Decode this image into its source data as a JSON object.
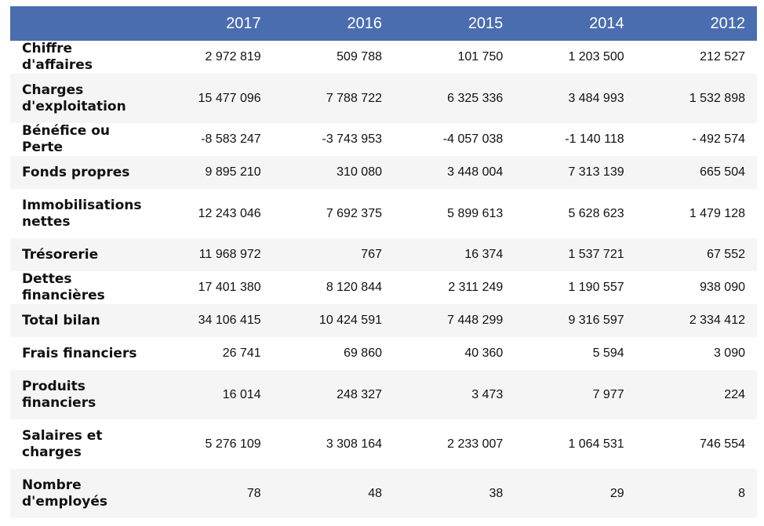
{
  "columns": [
    "",
    "2017",
    "2016",
    "2015",
    "2014",
    "2012"
  ],
  "rows": [
    {
      "label": "Chiffre d'affaires",
      "values": [
        "2 972 819",
        "509 788",
        "101 750",
        "1 203 500",
        "212 527"
      ]
    },
    {
      "label": "Charges d'exploitation",
      "values": [
        "15 477 096",
        "7 788 722",
        "6 325 336",
        "3 484 993",
        "1 532 898"
      ]
    },
    {
      "label": "Bénéfice ou Perte",
      "values": [
        "-8 583 247",
        "-3 743 953",
        "-4 057 038",
        "-1 140 118",
        "- 492 574"
      ]
    },
    {
      "label": "Fonds propres",
      "values": [
        "9 895 210",
        "310 080",
        "3 448 004",
        "7 313 139",
        "665 504"
      ]
    },
    {
      "label": "Immobilisations nettes",
      "values": [
        "12 243 046",
        "7 692 375",
        "5 899 613",
        "5 628 623",
        "1 479 128"
      ]
    },
    {
      "label": "Trésorerie",
      "values": [
        "11 968 972",
        "767",
        "16 374",
        "1 537 721",
        "67 552"
      ]
    },
    {
      "label": "Dettes financières",
      "values": [
        "17 401 380",
        "8 120 844",
        "2 311 249",
        "1 190 557",
        "938 090"
      ]
    },
    {
      "label": "Total bilan",
      "values": [
        "34 106 415",
        "10 424 591",
        "7 448 299",
        "9 316 597",
        "2 334 412"
      ]
    },
    {
      "label": "Frais financiers",
      "values": [
        "26 741",
        "69 860",
        "40 360",
        "5 594",
        "3 090"
      ]
    },
    {
      "label": "Produits financiers",
      "values": [
        "16 014",
        "248 327",
        "3 473",
        "7 977",
        "224"
      ]
    },
    {
      "label": "Salaires et charges",
      "values": [
        "5 276 109",
        "3 308 164",
        "2 233 007",
        "1 064 531",
        "746 554"
      ]
    },
    {
      "label": "Nombre d'employés",
      "values": [
        "78",
        "48",
        "38",
        "29",
        "8"
      ]
    }
  ],
  "colors": {
    "header_bg": "#4a6db0",
    "header_text": "#ffffff",
    "stripe": "#f5f5f5"
  }
}
